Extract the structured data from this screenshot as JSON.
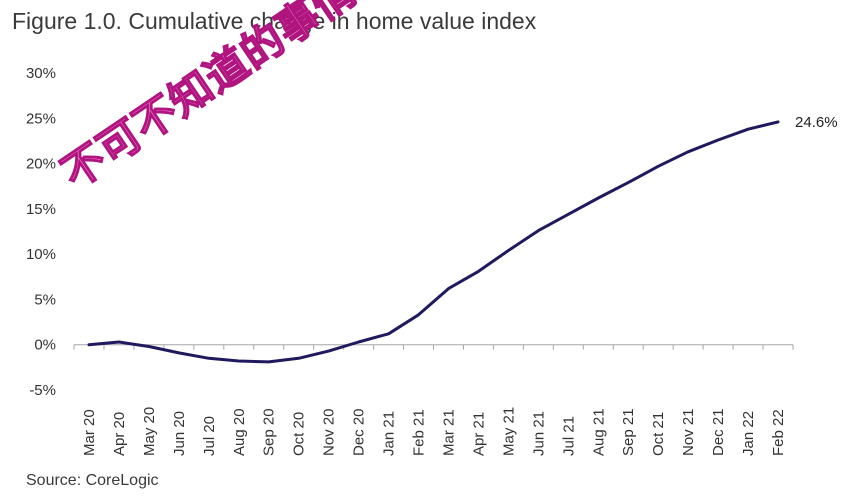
{
  "chart_data": {
    "type": "line",
    "title": "Figure 1.0. Cumulative change in home value index",
    "source": "Source: CoreLogic",
    "categories": [
      "Mar 20",
      "Apr 20",
      "May 20",
      "Jun 20",
      "Jul 20",
      "Aug 20",
      "Sep 20",
      "Oct 20",
      "Nov 20",
      "Dec 20",
      "Jan 21",
      "Feb 21",
      "Mar 21",
      "Apr 21",
      "May 21",
      "Jun 21",
      "Jul 21",
      "Aug 21",
      "Sep 21",
      "Oct 21",
      "Nov 21",
      "Dec 21",
      "Jan 22",
      "Feb 22"
    ],
    "series": [
      {
        "name": "Cumulative change in home value index",
        "color": "#1f1a5e",
        "values": [
          0.0,
          0.3,
          -0.2,
          -0.9,
          -1.5,
          -1.8,
          -1.9,
          -1.5,
          -0.7,
          0.3,
          1.2,
          3.3,
          6.2,
          8.1,
          10.4,
          12.6,
          14.4,
          16.2,
          17.9,
          19.7,
          21.3,
          22.6,
          23.8,
          24.6
        ]
      }
    ],
    "yticks": [
      "30%",
      "25%",
      "20%",
      "15%",
      "10%",
      "5%",
      "0%",
      "-5%"
    ],
    "ytick_values": [
      30,
      25,
      20,
      15,
      10,
      5,
      0,
      -5
    ],
    "ylim": [
      -5,
      30
    ],
    "end_label": "24.6%",
    "xlabel": "",
    "ylabel": ""
  },
  "watermark": "不可不知道的事情"
}
